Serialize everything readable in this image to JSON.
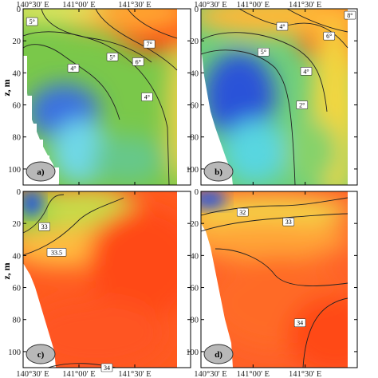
{
  "figure": {
    "y_axis_label": "z, m",
    "x_ticks": [
      "140°30' E",
      "141°00' E",
      "141°30' E"
    ],
    "y_ticks": [
      "0",
      "20",
      "40",
      "60",
      "80",
      "100"
    ]
  },
  "chart_data": [
    {
      "panel": "a)",
      "type": "heatmap",
      "ylabel": "z, m",
      "xlim": [
        140.5,
        142.0
      ],
      "ylim": [
        0,
        110
      ],
      "contours": [
        {
          "label": "5°",
          "x": 140.58,
          "y": 8
        },
        {
          "label": "7°",
          "x": 141.63,
          "y": 22
        },
        {
          "label": "6°",
          "x": 141.53,
          "y": 33
        },
        {
          "label": "5°",
          "x": 141.3,
          "y": 30
        },
        {
          "label": "4°",
          "x": 140.95,
          "y": 37
        },
        {
          "label": "4°",
          "x": 141.61,
          "y": 55
        }
      ],
      "colormap": [
        "blue",
        "cyan",
        "green",
        "yellow",
        "orange",
        "red"
      ]
    },
    {
      "panel": "b)",
      "type": "heatmap",
      "ylabel": "",
      "xlim": [
        140.5,
        142.0
      ],
      "ylim": [
        0,
        110
      ],
      "contours": [
        {
          "label": "8°",
          "x": 141.93,
          "y": 4
        },
        {
          "label": "6°",
          "x": 141.73,
          "y": 17
        },
        {
          "label": "4°",
          "x": 141.28,
          "y": 11
        },
        {
          "label": "5°",
          "x": 141.1,
          "y": 27
        },
        {
          "label": "4°",
          "x": 141.51,
          "y": 39
        },
        {
          "label": "2°",
          "x": 141.47,
          "y": 60
        }
      ],
      "colormap": [
        "blue",
        "cyan",
        "green",
        "yellow",
        "orange",
        "red"
      ]
    },
    {
      "panel": "c)",
      "type": "heatmap",
      "ylabel": "z, m",
      "xlim": [
        140.5,
        142.0
      ],
      "ylim": [
        0,
        110
      ],
      "contours": [
        {
          "label": "33",
          "x": 140.69,
          "y": 22
        },
        {
          "label": "33.5",
          "x": 140.8,
          "y": 38
        },
        {
          "label": "34",
          "x": 141.25,
          "y": 110
        }
      ],
      "colormap": [
        "blue",
        "cyan",
        "green",
        "yellow",
        "orange",
        "red"
      ]
    },
    {
      "panel": "d)",
      "type": "heatmap",
      "ylabel": "",
      "xlim": [
        140.5,
        142.0
      ],
      "ylim": [
        0,
        110
      ],
      "contours": [
        {
          "label": "32",
          "x": 140.9,
          "y": 13
        },
        {
          "label": "33",
          "x": 141.34,
          "y": 19
        },
        {
          "label": "34",
          "x": 141.45,
          "y": 82
        }
      ],
      "colormap": [
        "blue",
        "cyan",
        "green",
        "yellow",
        "orange",
        "red"
      ]
    }
  ]
}
